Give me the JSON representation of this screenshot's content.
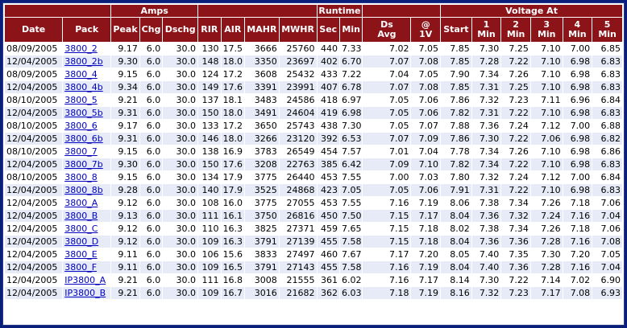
{
  "groups": {
    "amps": "Amps",
    "runtime": "Runtime",
    "voltage_at": "Voltage At"
  },
  "columns": {
    "date": "Date",
    "pack": "Pack",
    "peak": "Peak",
    "chg": "Chg",
    "dschg": "Dschg",
    "rir": "RIR",
    "air": "AIR",
    "mahr": "MAHR",
    "mwhr": "MWHR",
    "sec": "Sec",
    "min": "Min",
    "ds_avg": "Ds Avg",
    "at_1v": "@ 1V",
    "start": "Start",
    "min1": "1 Min",
    "min2": "2 Min",
    "min3": "3 Min",
    "min4": "4 Min",
    "min5": "5 Min"
  },
  "rows": [
    {
      "date": "08/09/2005",
      "pack": "3800_2",
      "peak": "9.17",
      "chg": "6.0",
      "dschg": "30.0",
      "rir": "130",
      "air": "17.5",
      "mahr": "3666",
      "mwhr": "25760",
      "sec": "440",
      "min": "7.33",
      "ds_avg": "7.02",
      "at_1v": "7.05",
      "start": "7.85",
      "v1": "7.30",
      "v2": "7.25",
      "v3": "7.10",
      "v4": "7.00",
      "v5": "6.85"
    },
    {
      "date": "12/04/2005",
      "pack": "3800_2b",
      "peak": "9.30",
      "chg": "6.0",
      "dschg": "30.0",
      "rir": "148",
      "air": "18.0",
      "mahr": "3350",
      "mwhr": "23697",
      "sec": "402",
      "min": "6.70",
      "ds_avg": "7.07",
      "at_1v": "7.08",
      "start": "7.85",
      "v1": "7.28",
      "v2": "7.22",
      "v3": "7.10",
      "v4": "6.98",
      "v5": "6.83"
    },
    {
      "date": "08/09/2005",
      "pack": "3800_4",
      "peak": "9.15",
      "chg": "6.0",
      "dschg": "30.0",
      "rir": "124",
      "air": "17.2",
      "mahr": "3608",
      "mwhr": "25432",
      "sec": "433",
      "min": "7.22",
      "ds_avg": "7.04",
      "at_1v": "7.05",
      "start": "7.90",
      "v1": "7.34",
      "v2": "7.26",
      "v3": "7.10",
      "v4": "6.98",
      "v5": "6.83"
    },
    {
      "date": "12/04/2005",
      "pack": "3800_4b",
      "peak": "9.34",
      "chg": "6.0",
      "dschg": "30.0",
      "rir": "149",
      "air": "17.6",
      "mahr": "3391",
      "mwhr": "23991",
      "sec": "407",
      "min": "6.78",
      "ds_avg": "7.07",
      "at_1v": "7.08",
      "start": "7.85",
      "v1": "7.31",
      "v2": "7.25",
      "v3": "7.10",
      "v4": "6.98",
      "v5": "6.83"
    },
    {
      "date": "08/10/2005",
      "pack": "3800_5",
      "peak": "9.21",
      "chg": "6.0",
      "dschg": "30.0",
      "rir": "137",
      "air": "18.1",
      "mahr": "3483",
      "mwhr": "24586",
      "sec": "418",
      "min": "6.97",
      "ds_avg": "7.05",
      "at_1v": "7.06",
      "start": "7.86",
      "v1": "7.32",
      "v2": "7.23",
      "v3": "7.11",
      "v4": "6.96",
      "v5": "6.84"
    },
    {
      "date": "12/04/2005",
      "pack": "3800_5b",
      "peak": "9.31",
      "chg": "6.0",
      "dschg": "30.0",
      "rir": "150",
      "air": "18.0",
      "mahr": "3491",
      "mwhr": "24604",
      "sec": "419",
      "min": "6.98",
      "ds_avg": "7.05",
      "at_1v": "7.06",
      "start": "7.82",
      "v1": "7.31",
      "v2": "7.22",
      "v3": "7.10",
      "v4": "6.98",
      "v5": "6.83"
    },
    {
      "date": "08/10/2005",
      "pack": "3800_6",
      "peak": "9.17",
      "chg": "6.0",
      "dschg": "30.0",
      "rir": "133",
      "air": "17.2",
      "mahr": "3650",
      "mwhr": "25743",
      "sec": "438",
      "min": "7.30",
      "ds_avg": "7.05",
      "at_1v": "7.07",
      "start": "7.88",
      "v1": "7.36",
      "v2": "7.24",
      "v3": "7.12",
      "v4": "7.00",
      "v5": "6.88"
    },
    {
      "date": "12/04/2005",
      "pack": "3800_6b",
      "peak": "9.31",
      "chg": "6.0",
      "dschg": "30.0",
      "rir": "146",
      "air": "18.0",
      "mahr": "3266",
      "mwhr": "23120",
      "sec": "392",
      "min": "6.53",
      "ds_avg": "7.07",
      "at_1v": "7.09",
      "start": "7.86",
      "v1": "7.30",
      "v2": "7.22",
      "v3": "7.06",
      "v4": "6.98",
      "v5": "6.82"
    },
    {
      "date": "08/10/2005",
      "pack": "3800_7",
      "peak": "9.15",
      "chg": "6.0",
      "dschg": "30.0",
      "rir": "138",
      "air": "16.9",
      "mahr": "3783",
      "mwhr": "26549",
      "sec": "454",
      "min": "7.57",
      "ds_avg": "7.01",
      "at_1v": "7.04",
      "start": "7.78",
      "v1": "7.34",
      "v2": "7.26",
      "v3": "7.10",
      "v4": "6.98",
      "v5": "6.86"
    },
    {
      "date": "12/04/2005",
      "pack": "3800_7b",
      "peak": "9.30",
      "chg": "6.0",
      "dschg": "30.0",
      "rir": "150",
      "air": "17.6",
      "mahr": "3208",
      "mwhr": "22763",
      "sec": "385",
      "min": "6.42",
      "ds_avg": "7.09",
      "at_1v": "7.10",
      "start": "7.82",
      "v1": "7.34",
      "v2": "7.22",
      "v3": "7.10",
      "v4": "6.98",
      "v5": "6.83"
    },
    {
      "date": "08/10/2005",
      "pack": "3800_8",
      "peak": "9.15",
      "chg": "6.0",
      "dschg": "30.0",
      "rir": "134",
      "air": "17.9",
      "mahr": "3775",
      "mwhr": "26440",
      "sec": "453",
      "min": "7.55",
      "ds_avg": "7.00",
      "at_1v": "7.03",
      "start": "7.80",
      "v1": "7.32",
      "v2": "7.24",
      "v3": "7.12",
      "v4": "7.00",
      "v5": "6.84"
    },
    {
      "date": "12/04/2005",
      "pack": "3800_8b",
      "peak": "9.28",
      "chg": "6.0",
      "dschg": "30.0",
      "rir": "140",
      "air": "17.9",
      "mahr": "3525",
      "mwhr": "24868",
      "sec": "423",
      "min": "7.05",
      "ds_avg": "7.05",
      "at_1v": "7.06",
      "start": "7.91",
      "v1": "7.31",
      "v2": "7.22",
      "v3": "7.10",
      "v4": "6.98",
      "v5": "6.83"
    },
    {
      "date": "12/04/2005",
      "pack": "3800_A",
      "peak": "9.12",
      "chg": "6.0",
      "dschg": "30.0",
      "rir": "108",
      "air": "16.0",
      "mahr": "3775",
      "mwhr": "27055",
      "sec": "453",
      "min": "7.55",
      "ds_avg": "7.16",
      "at_1v": "7.19",
      "start": "8.06",
      "v1": "7.38",
      "v2": "7.34",
      "v3": "7.26",
      "v4": "7.18",
      "v5": "7.06"
    },
    {
      "date": "12/04/2005",
      "pack": "3800_B",
      "peak": "9.13",
      "chg": "6.0",
      "dschg": "30.0",
      "rir": "111",
      "air": "16.1",
      "mahr": "3750",
      "mwhr": "26816",
      "sec": "450",
      "min": "7.50",
      "ds_avg": "7.15",
      "at_1v": "7.17",
      "start": "8.04",
      "v1": "7.36",
      "v2": "7.32",
      "v3": "7.24",
      "v4": "7.16",
      "v5": "7.04"
    },
    {
      "date": "12/04/2005",
      "pack": "3800_C",
      "peak": "9.12",
      "chg": "6.0",
      "dschg": "30.0",
      "rir": "110",
      "air": "16.3",
      "mahr": "3825",
      "mwhr": "27371",
      "sec": "459",
      "min": "7.65",
      "ds_avg": "7.15",
      "at_1v": "7.18",
      "start": "8.02",
      "v1": "7.38",
      "v2": "7.34",
      "v3": "7.26",
      "v4": "7.18",
      "v5": "7.06"
    },
    {
      "date": "12/04/2005",
      "pack": "3800_D",
      "peak": "9.12",
      "chg": "6.0",
      "dschg": "30.0",
      "rir": "109",
      "air": "16.3",
      "mahr": "3791",
      "mwhr": "27139",
      "sec": "455",
      "min": "7.58",
      "ds_avg": "7.15",
      "at_1v": "7.18",
      "start": "8.04",
      "v1": "7.36",
      "v2": "7.36",
      "v3": "7.28",
      "v4": "7.16",
      "v5": "7.08"
    },
    {
      "date": "12/04/2005",
      "pack": "3800_E",
      "peak": "9.11",
      "chg": "6.0",
      "dschg": "30.0",
      "rir": "106",
      "air": "15.6",
      "mahr": "3833",
      "mwhr": "27497",
      "sec": "460",
      "min": "7.67",
      "ds_avg": "7.17",
      "at_1v": "7.20",
      "start": "8.05",
      "v1": "7.40",
      "v2": "7.35",
      "v3": "7.30",
      "v4": "7.20",
      "v5": "7.05"
    },
    {
      "date": "12/04/2005",
      "pack": "3800_F",
      "peak": "9.11",
      "chg": "6.0",
      "dschg": "30.0",
      "rir": "109",
      "air": "16.5",
      "mahr": "3791",
      "mwhr": "27143",
      "sec": "455",
      "min": "7.58",
      "ds_avg": "7.16",
      "at_1v": "7.19",
      "start": "8.04",
      "v1": "7.40",
      "v2": "7.36",
      "v3": "7.28",
      "v4": "7.16",
      "v5": "7.04"
    },
    {
      "date": "12/04/2005",
      "pack": "IP3800_A",
      "peak": "9.21",
      "chg": "6.0",
      "dschg": "30.0",
      "rir": "111",
      "air": "16.8",
      "mahr": "3008",
      "mwhr": "21555",
      "sec": "361",
      "min": "6.02",
      "ds_avg": "7.16",
      "at_1v": "7.17",
      "start": "8.14",
      "v1": "7.30",
      "v2": "7.22",
      "v3": "7.14",
      "v4": "7.02",
      "v5": "6.90"
    },
    {
      "date": "12/04/2005",
      "pack": "IP3800_B",
      "peak": "9.21",
      "chg": "6.0",
      "dschg": "30.0",
      "rir": "109",
      "air": "16.7",
      "mahr": "3016",
      "mwhr": "21682",
      "sec": "362",
      "min": "6.03",
      "ds_avg": "7.18",
      "at_1v": "7.19",
      "start": "8.16",
      "v1": "7.32",
      "v2": "7.23",
      "v3": "7.17",
      "v4": "7.08",
      "v5": "6.93"
    }
  ],
  "colors": {
    "header_bg": "#8c1318",
    "header_text": "#ffffff",
    "row_alt": "#e6ebf7",
    "link": "#0000c0",
    "page_bg": "#0a1f7a"
  }
}
